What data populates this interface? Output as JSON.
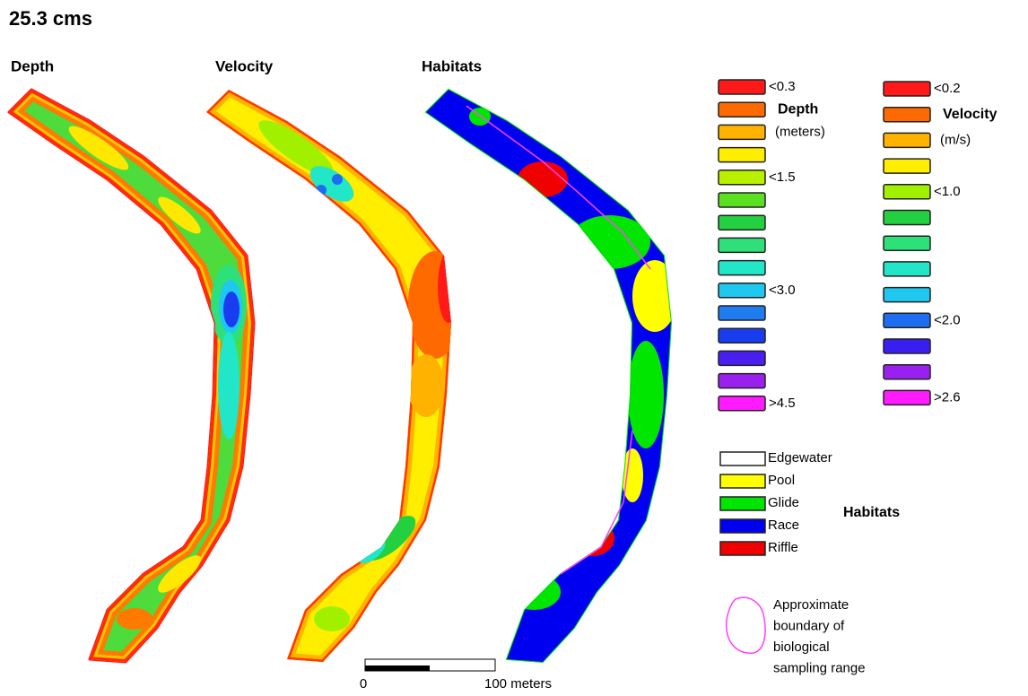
{
  "title": "25.3 cms",
  "panels": [
    "Depth",
    "Velocity",
    "Habitats"
  ],
  "depth_legend": {
    "title": "Depth",
    "unit": "(meters)",
    "colors": [
      "#ff1a1a",
      "#ff6a00",
      "#ffb300",
      "#ffee00",
      "#b8f000",
      "#5ae020",
      "#22d040",
      "#2ee07a",
      "#22e6c8",
      "#1ec8f0",
      "#1e7cf0",
      "#1a3cf0",
      "#4a1ef0",
      "#9a20f0",
      "#ff1aff"
    ],
    "labels": [
      "<0.3",
      null,
      null,
      null,
      "<1.5",
      null,
      null,
      null,
      null,
      "<3.0",
      null,
      null,
      null,
      null,
      ">4.5"
    ]
  },
  "velocity_legend": {
    "title": "Velocity",
    "unit": "(m/s)",
    "colors": [
      "#ff1a1a",
      "#ff6a00",
      "#ffb300",
      "#ffee00",
      "#a0f000",
      "#22d040",
      "#2ee07a",
      "#22e6c8",
      "#1ec8f0",
      "#1e6cf0",
      "#3a1ef0",
      "#9a20f0",
      "#ff1aff"
    ],
    "labels": [
      "<0.2",
      null,
      null,
      null,
      "<1.0",
      null,
      null,
      null,
      null,
      "<2.0",
      null,
      null,
      ">2.6"
    ]
  },
  "habitat_legend": {
    "title": "Habitats",
    "items": [
      {
        "name": "Edgewater",
        "color": "#ffffff"
      },
      {
        "name": "Pool",
        "color": "#ffff00"
      },
      {
        "name": "Glide",
        "color": "#00e600"
      },
      {
        "name": "Race",
        "color": "#0000f0"
      },
      {
        "name": "Riffle",
        "color": "#f00000"
      }
    ]
  },
  "boundary_note": [
    "Approximate",
    "boundary of",
    "biological",
    "sampling range"
  ],
  "scale_bar": {
    "start": "0",
    "end": "100 meters"
  }
}
